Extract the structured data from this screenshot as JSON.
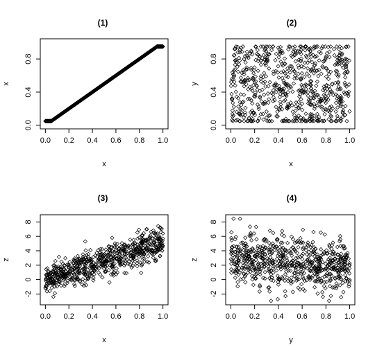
{
  "chart_data": [
    {
      "type": "scatter",
      "title": "(1)",
      "xlabel": "x",
      "ylabel": "x",
      "xlim": [
        0,
        1
      ],
      "ylim": [
        0,
        1
      ],
      "xticks": [
        "0.0",
        "0.2",
        "0.4",
        "0.6",
        "0.8",
        "1.0"
      ],
      "yticks": [
        "0.0",
        "0.4",
        "0.8"
      ],
      "series": [
        {
          "description": "x plotted against itself; points lie on the identity line",
          "slope": 1,
          "intercept": 0,
          "x_range": [
            0,
            1
          ],
          "noise_sd": 0,
          "n": 1000
        }
      ]
    },
    {
      "type": "scatter",
      "title": "(2)",
      "xlabel": "x",
      "ylabel": "y",
      "xlim": [
        0,
        1
      ],
      "ylim": [
        0,
        1
      ],
      "xticks": [
        "0.0",
        "0.2",
        "0.4",
        "0.6",
        "0.8",
        "1.0"
      ],
      "yticks": [
        "0.0",
        "0.4",
        "0.8"
      ],
      "series": [
        {
          "description": "independent uniform x and y; no relationship",
          "slope": 0,
          "intercept": 0.5,
          "y_spread": [
            0,
            1
          ],
          "x_range": [
            0,
            1
          ],
          "n": 700
        }
      ]
    },
    {
      "type": "scatter",
      "title": "(3)",
      "xlabel": "x",
      "ylabel": "z",
      "xlim": [
        0,
        1
      ],
      "ylim": [
        -3,
        8.5
      ],
      "xticks": [
        "0.0",
        "0.2",
        "0.4",
        "0.6",
        "0.8",
        "1.0"
      ],
      "yticks": [
        "-2",
        "0",
        "2",
        "4",
        "6",
        "8"
      ],
      "series": [
        {
          "description": "z increases with x; strong positive relationship",
          "slope": 5,
          "intercept": 0,
          "x_range": [
            0,
            1
          ],
          "noise_sd": 1.1,
          "n": 700
        }
      ]
    },
    {
      "type": "scatter",
      "title": "(4)",
      "xlabel": "y",
      "ylabel": "z",
      "xlim": [
        0,
        1
      ],
      "ylim": [
        -3,
        8.5
      ],
      "xticks": [
        "0.0",
        "0.2",
        "0.4",
        "0.6",
        "0.8",
        "1.0"
      ],
      "yticks": [
        "-2",
        "0",
        "2",
        "4",
        "6",
        "8"
      ],
      "series": [
        {
          "description": "z decreases weakly with y; noisy negative relationship",
          "slope": -1.5,
          "intercept": 3.2,
          "x_range": [
            0,
            1
          ],
          "noise_sd": 1.7,
          "n": 700
        }
      ]
    }
  ],
  "colors": {
    "point_stroke": "#000000",
    "axes": "#000000",
    "background": "#ffffff"
  }
}
